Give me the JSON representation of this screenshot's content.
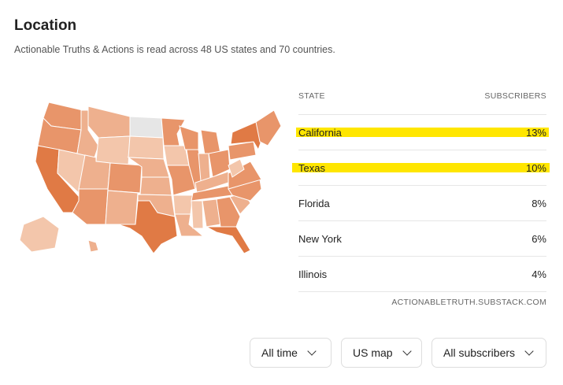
{
  "title": "Location",
  "subtitle": "Actionable Truths & Actions is read across 48 US states and 70 countries.",
  "table": {
    "col_state": "STATE",
    "col_subscribers": "SUBSCRIBERS",
    "rows": [
      {
        "state": "California",
        "value": "13%",
        "highlighted": true
      },
      {
        "state": "Texas",
        "value": "10%",
        "highlighted": true
      },
      {
        "state": "Florida",
        "value": "8%"
      },
      {
        "state": "New York",
        "value": "6%"
      },
      {
        "state": "Illinois",
        "value": "4%"
      }
    ]
  },
  "source": "ACTIONABLETRUTH.SUBSTACK.COM",
  "filters": {
    "time": "All time",
    "view": "US map",
    "audience": "All subscribers"
  },
  "colors": {
    "highlight": "#ffe600",
    "map_dark": "#e07a45",
    "map_mid": "#e8956a",
    "map_light": "#eeb08e",
    "map_lighter": "#f3c6ab",
    "map_none": "#e6e6e6"
  }
}
